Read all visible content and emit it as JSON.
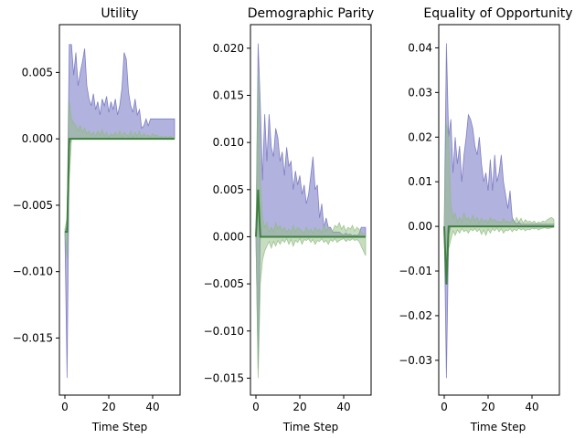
{
  "colors": {
    "band_blue": "#7373c4",
    "band_blue_edge": "#6a6ab8",
    "band_green": "#8fbc7f",
    "line_green": "#3f7f3f"
  },
  "chart_data": [
    {
      "type": "area",
      "title": "Utility",
      "xlabel": "Time Step",
      "ylabel": "",
      "xlim": [
        -2.5,
        52.5
      ],
      "ylim": [
        -0.0193,
        0.0086
      ],
      "xticks": [
        0,
        20,
        40
      ],
      "yticks": [
        -0.015,
        -0.01,
        -0.005,
        0.0,
        0.005
      ],
      "ytick_labels": [
        "−0.015",
        "−0.010",
        "−0.005",
        "0.000",
        "0.005"
      ],
      "grid": false,
      "x": [
        0,
        1,
        2,
        3,
        4,
        5,
        6,
        7,
        8,
        9,
        10,
        11,
        12,
        13,
        14,
        15,
        16,
        17,
        18,
        19,
        20,
        21,
        22,
        23,
        24,
        25,
        26,
        27,
        28,
        29,
        30,
        31,
        32,
        33,
        34,
        35,
        36,
        37,
        38,
        39,
        40,
        41,
        42,
        43,
        44,
        45,
        46,
        47,
        48,
        49,
        50
      ],
      "series": [
        {
          "role": "band_blue",
          "upper": [
            -0.007,
            -0.0065,
            0.0071,
            0.0071,
            0.0048,
            0.0065,
            0.004,
            0.005,
            0.0058,
            0.0068,
            0.004,
            0.003,
            0.0025,
            0.0034,
            0.0022,
            0.0028,
            0.0018,
            0.003,
            0.0025,
            0.0032,
            0.002,
            0.0028,
            0.0022,
            0.003,
            0.0018,
            0.0025,
            0.0038,
            0.0065,
            0.006,
            0.0035,
            0.0025,
            0.002,
            0.003,
            0.0018,
            0.0022,
            0.0008,
            0.001,
            0.0015,
            0.001,
            0.0015,
            0.0015,
            0.0015,
            0.0015,
            0.0015,
            0.0015,
            0.0015,
            0.0015,
            0.0015,
            0.0015,
            0.0015,
            0.0015
          ],
          "lower": [
            -0.007,
            -0.018,
            -0.0005,
            0,
            0,
            0,
            0,
            0,
            0,
            0,
            0,
            0,
            0,
            0,
            0,
            0,
            0,
            0,
            0,
            0,
            0,
            0,
            0,
            0,
            0,
            0,
            0,
            0,
            0,
            0,
            0,
            0,
            0,
            0,
            0,
            0,
            0,
            0,
            0,
            0,
            0,
            0,
            0,
            0,
            0,
            0,
            0,
            0,
            0,
            0,
            0
          ]
        },
        {
          "role": "band_green",
          "upper": [
            -0.0068,
            -0.006,
            0.0028,
            0.0015,
            0.0012,
            0.001,
            0.0006,
            0.001,
            0.0005,
            0.0008,
            0.0004,
            0.0006,
            0.0003,
            0.0005,
            0.0002,
            0.0006,
            0.0003,
            0.0007,
            0.0002,
            0.0005,
            0.0001,
            0.0004,
            0.0002,
            0.0005,
            0.0002,
            0.0006,
            0.0001,
            0.0005,
            0.0003,
            0.0002,
            0.0006,
            0.0001,
            0.0005,
            0.0002,
            0.0006,
            0.0001,
            0.0004,
            0.0002,
            0.0003,
            0.0001,
            0.0004,
            0.0002,
            0.0003,
            0.0001,
            0.0002,
            0.0001,
            0.0002,
            0.0001,
            0.0002,
            0.0001,
            0.0002
          ],
          "lower": [
            -0.0072,
            -0.009,
            -0.003,
            0,
            0,
            0,
            0,
            0,
            0,
            0,
            0,
            0,
            0,
            0,
            0,
            0,
            0,
            0,
            0,
            0,
            0,
            0,
            0,
            0,
            0,
            0,
            0,
            0,
            0,
            0,
            0,
            0,
            0,
            0,
            0,
            0,
            0,
            0,
            0,
            0,
            0,
            0,
            0,
            0,
            0,
            0,
            0,
            0,
            0,
            0,
            0
          ]
        },
        {
          "role": "line_green",
          "values": [
            -0.007,
            -0.007,
            0,
            0,
            0,
            0,
            0,
            0,
            0,
            0,
            0,
            0,
            0,
            0,
            0,
            0,
            0,
            0,
            0,
            0,
            0,
            0,
            0,
            0,
            0,
            0,
            0,
            0,
            0,
            0,
            0,
            0,
            0,
            0,
            0,
            0,
            0,
            0,
            0,
            0,
            0,
            0,
            0,
            0,
            0,
            0,
            0,
            0,
            0,
            0,
            0
          ]
        }
      ]
    },
    {
      "type": "area",
      "title": "Demographic Parity",
      "xlabel": "Time Step",
      "ylabel": "",
      "xlim": [
        -2.5,
        52.5
      ],
      "ylim": [
        -0.0168,
        0.0225
      ],
      "xticks": [
        0,
        20,
        40
      ],
      "yticks": [
        -0.015,
        -0.01,
        -0.005,
        0.0,
        0.005,
        0.01,
        0.015,
        0.02
      ],
      "ytick_labels": [
        "−0.015",
        "−0.010",
        "−0.005",
        "0.000",
        "0.005",
        "0.010",
        "0.015",
        "0.020"
      ],
      "grid": false,
      "x": [
        0,
        1,
        2,
        3,
        4,
        5,
        6,
        7,
        8,
        9,
        10,
        11,
        12,
        13,
        14,
        15,
        16,
        17,
        18,
        19,
        20,
        21,
        22,
        23,
        24,
        25,
        26,
        27,
        28,
        29,
        30,
        31,
        32,
        33,
        34,
        35,
        36,
        37,
        38,
        39,
        40,
        41,
        42,
        43,
        44,
        45,
        46,
        47,
        48,
        49,
        50
      ],
      "series": [
        {
          "role": "band_blue",
          "upper": [
            0.0,
            0.0205,
            0.014,
            0.006,
            0.013,
            0.008,
            0.013,
            0.0095,
            0.0085,
            0.0115,
            0.0105,
            0.008,
            0.009,
            0.0065,
            0.0095,
            0.0075,
            0.008,
            0.005,
            0.007,
            0.0055,
            0.0065,
            0.0045,
            0.0055,
            0.0035,
            0.0045,
            0.0065,
            0.0085,
            0.005,
            0.0055,
            0.002,
            0.0035,
            0.001,
            0.002,
            0.001,
            0.001,
            0.0005,
            0.0005,
            0.0005,
            0.0005,
            0.0003,
            0.0002,
            0.0004,
            0.0002,
            0.0003,
            0.0001,
            0.0002,
            0.0001,
            0.0003,
            0.001,
            0.001,
            0.001
          ],
          "lower": [
            0.0,
            -0.014,
            0,
            0,
            0,
            0,
            0,
            0,
            0,
            0,
            0,
            0,
            0,
            0,
            0,
            0,
            0,
            0,
            0,
            0,
            0,
            0,
            0,
            0,
            0,
            0,
            0,
            0,
            0,
            0,
            0,
            0,
            0,
            0,
            0,
            0,
            0,
            0,
            0,
            0,
            0,
            0,
            0,
            0,
            0,
            0,
            0,
            0,
            0,
            0,
            0
          ]
        },
        {
          "role": "band_green",
          "upper": [
            0.0,
            0.0175,
            0.006,
            0.002,
            0.001,
            0.0015,
            0.0005,
            0.001,
            0.0005,
            0.0015,
            0.0008,
            0.0012,
            0.0006,
            0.001,
            0.0005,
            0.0008,
            0.0004,
            0.0012,
            0.0005,
            0.001,
            0.0008,
            0.0006,
            0.0004,
            0.001,
            0.0005,
            0.0008,
            0.0004,
            0.001,
            0.0006,
            0.0008,
            0.0004,
            0.0012,
            0.0006,
            0.001,
            0.0008,
            0.0006,
            0.0012,
            0.001,
            0.0015,
            0.0008,
            0.0012,
            0.0006,
            0.001,
            0.0008,
            0.0012,
            0.0006,
            0.001,
            0.0008,
            0.0005,
            0.0003,
            0.0002
          ],
          "lower": [
            0.0,
            -0.015,
            -0.005,
            -0.0025,
            -0.0015,
            -0.001,
            -0.0005,
            -0.0012,
            -0.0005,
            -0.001,
            -0.0004,
            -0.0008,
            -0.0003,
            -0.0006,
            -0.0002,
            -0.0008,
            -0.0003,
            -0.001,
            -0.0004,
            -0.0006,
            -0.0002,
            -0.0008,
            -0.0003,
            -0.0004,
            -0.0002,
            -0.0006,
            -0.0003,
            -0.0008,
            -0.0004,
            -0.0005,
            -0.0002,
            -0.0006,
            -0.0004,
            -0.0008,
            -0.0003,
            -0.0005,
            -0.0002,
            -0.0006,
            -0.0004,
            -0.0003,
            -0.0002,
            -0.0005,
            -0.0003,
            -0.0004,
            -0.0002,
            -0.0004,
            -0.0003,
            -0.0005,
            -0.001,
            -0.0015,
            -0.002
          ]
        },
        {
          "role": "line_green",
          "values": [
            0.0,
            0.005,
            0,
            0,
            0,
            0,
            0,
            0,
            0,
            0,
            0,
            0,
            0,
            0,
            0,
            0,
            0,
            0,
            0,
            0,
            0,
            0,
            0,
            0,
            0,
            0,
            0,
            0,
            0,
            0,
            0,
            0,
            0,
            0,
            0,
            0,
            0,
            0,
            0,
            0,
            0,
            0,
            0,
            0,
            0,
            0,
            0,
            0,
            0,
            0,
            0
          ]
        }
      ]
    },
    {
      "type": "area",
      "title": "Equality of Opportunity",
      "xlabel": "Time Step",
      "ylabel": "",
      "xlim": [
        -2.5,
        52.5
      ],
      "ylim": [
        -0.0378,
        0.0452
      ],
      "xticks": [
        0,
        20,
        40
      ],
      "yticks": [
        -0.03,
        -0.02,
        -0.01,
        0.0,
        0.01,
        0.02,
        0.03,
        0.04
      ],
      "ytick_labels": [
        "−0.03",
        "−0.02",
        "−0.01",
        "0.00",
        "0.01",
        "0.02",
        "0.03",
        "0.04"
      ],
      "grid": false,
      "x": [
        0,
        1,
        2,
        3,
        4,
        5,
        6,
        7,
        8,
        9,
        10,
        11,
        12,
        13,
        14,
        15,
        16,
        17,
        18,
        19,
        20,
        21,
        22,
        23,
        24,
        25,
        26,
        27,
        28,
        29,
        30,
        31,
        32,
        33,
        34,
        35,
        36,
        37,
        38,
        39,
        40,
        41,
        42,
        43,
        44,
        45,
        46,
        47,
        48,
        49,
        50
      ],
      "series": [
        {
          "role": "band_blue",
          "upper": [
            0.0,
            0.041,
            0.02,
            0.024,
            0.012,
            0.02,
            0.014,
            0.018,
            0.01,
            0.016,
            0.02,
            0.025,
            0.024,
            0.022,
            0.018,
            0.016,
            0.02,
            0.014,
            0.01,
            0.012,
            0.008,
            0.015,
            0.008,
            0.016,
            0.01,
            0.012,
            0.016,
            0.01,
            0.007,
            0.004,
            0.008,
            0.002,
            0.001,
            0.0005,
            0.001,
            0.0005,
            0.0005,
            0.0005,
            0.0005,
            0.0005,
            0.0005,
            0.0005,
            0.0005,
            0.0005,
            0.0005,
            0.0005,
            0.0005,
            0.0005,
            0.0005,
            0.0005,
            0.0005
          ],
          "lower": [
            0.0,
            -0.034,
            -0.002,
            0,
            0,
            0,
            0,
            0,
            0,
            0,
            0,
            0,
            0,
            0,
            0,
            0,
            0,
            0,
            0,
            0,
            0,
            0,
            0,
            0,
            0,
            0,
            0,
            0,
            0,
            0,
            0,
            0,
            0,
            0,
            0,
            0,
            0,
            0,
            0,
            0,
            0,
            0,
            0,
            0,
            0,
            0,
            0,
            0,
            0,
            0,
            0
          ]
        },
        {
          "role": "band_green",
          "upper": [
            0.0,
            0.023,
            0.02,
            0.005,
            0.002,
            0.003,
            0.001,
            0.002,
            0.001,
            0.003,
            0.0015,
            0.002,
            0.001,
            0.0025,
            0.0012,
            0.002,
            0.0008,
            0.0018,
            0.001,
            0.0015,
            0.0008,
            0.002,
            0.0012,
            0.0016,
            0.001,
            0.0012,
            0.0008,
            0.0018,
            0.001,
            0.0012,
            0.0008,
            0.0015,
            0.0008,
            0.002,
            0.001,
            0.0018,
            0.0008,
            0.0015,
            0.001,
            0.0012,
            0.0008,
            0.0012,
            0.0006,
            0.001,
            0.0008,
            0.0012,
            0.001,
            0.0015,
            0.0018,
            0.002,
            0.0015
          ],
          "lower": [
            0.0,
            -0.013,
            -0.005,
            -0.003,
            -0.001,
            -0.002,
            -0.0008,
            -0.0015,
            -0.0005,
            -0.0012,
            -0.0008,
            -0.0015,
            -0.0006,
            -0.001,
            -0.0005,
            -0.0012,
            -0.0006,
            -0.0018,
            -0.0008,
            -0.002,
            -0.0006,
            -0.0015,
            -0.0005,
            -0.001,
            -0.0004,
            -0.0012,
            -0.0005,
            -0.0015,
            -0.0008,
            -0.001,
            -0.0005,
            -0.0012,
            -0.0006,
            -0.001,
            -0.0004,
            -0.0008,
            -0.0005,
            -0.001,
            -0.0006,
            -0.0008,
            -0.0004,
            -0.0006,
            -0.0004,
            -0.0008,
            -0.0005,
            -0.0004,
            -0.0003,
            -0.0005,
            -0.0004,
            -0.0003,
            -0.0002
          ]
        },
        {
          "role": "line_green",
          "values": [
            0.0,
            -0.013,
            0,
            0,
            0,
            0,
            0,
            0,
            0,
            0,
            0,
            0,
            0,
            0,
            0,
            0,
            0,
            0,
            0,
            0,
            0,
            0,
            0,
            0,
            0,
            0,
            0,
            0,
            0,
            0,
            0,
            0,
            0,
            0,
            0,
            0,
            0,
            0,
            0,
            0,
            0,
            0,
            0,
            0,
            0,
            0,
            0,
            0,
            0,
            0,
            0
          ]
        }
      ]
    }
  ]
}
